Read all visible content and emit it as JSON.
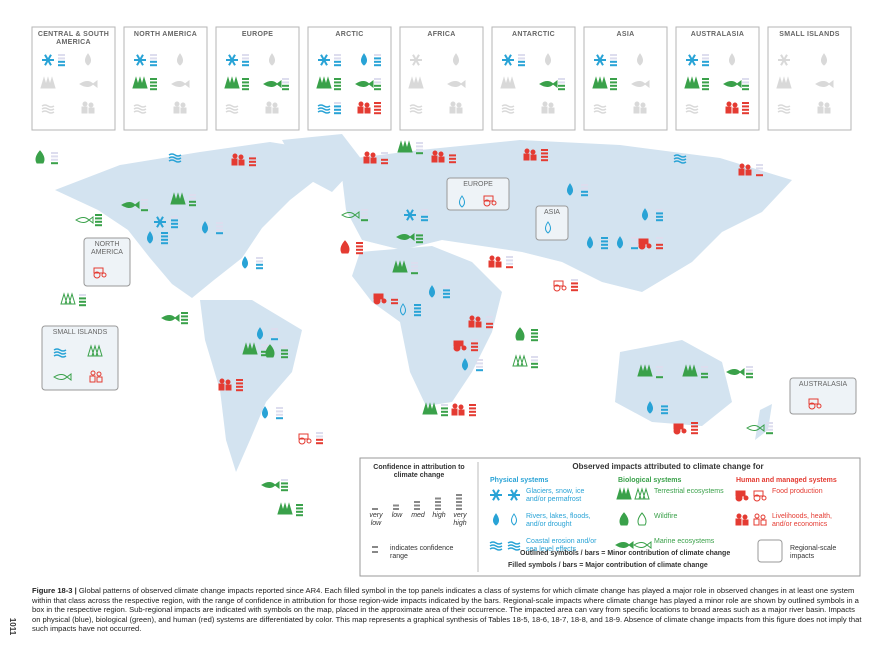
{
  "panels": [
    "CENTRAL & SOUTH AMERICA",
    "NORTH AMERICA",
    "EUROPE",
    "ARCTIC",
    "AFRICA",
    "ANTARCTIC",
    "ASIA",
    "AUSTRALASIA",
    "SMALL ISLANDS"
  ],
  "map_labels": [
    "EUROPE",
    "ASIA",
    "NORTH AMERICA",
    "SMALL ISLANDS",
    "AUSTRALASIA"
  ],
  "legend": {
    "confidence_title": "Confidence in attribution to climate change",
    "confidence_levels": [
      "very low",
      "low",
      "med",
      "high",
      "very high"
    ],
    "range_note": "indicates confidence range",
    "impacts_title": "Observed impacts attributed to climate change for",
    "physical": {
      "title": "Physical systems",
      "items": [
        "Glaciers, snow, ice and/or permafrost",
        "Rivers, lakes, floods, and/or drought",
        "Coastal erosion and/or sea level effects"
      ]
    },
    "biological": {
      "title": "Biological systems",
      "items": [
        "Terrestrial ecosystems",
        "Wildfire",
        "Marine ecosystems"
      ]
    },
    "human": {
      "title": "Human and managed systems",
      "items": [
        "Food production",
        "Livelihoods, health, and/or economics"
      ]
    },
    "outlined_note": "Outlined symbols / bars = Minor contribution of climate change",
    "filled_note": "Filled symbols / bars = Major contribution of climate change",
    "regional": "Regional-scale impacts"
  },
  "caption": {
    "label": "Figure 18-3 |",
    "text": "Global patterns of observed climate change impacts reported since AR4. Each filled symbol in the top panels indicates a class of systems for which climate change has played a major role in observed changes in at least one system within that class across the respective region, with the range of confidence in attribution for those region-wide impacts indicated by the bars. Regional-scale impacts where climate change has played a minor role are shown by outlined symbols in a box in the respective region. Sub-regional impacts are indicated with symbols on the map, placed in the approximate area of their occurrence. The impacted area can vary from specific locations to broad areas such as a major river basin. Impacts on physical (blue), biological (green), and human (red) systems are differentiated by color. This map represents a graphical synthesis of Tables 18-5, 18-6, 18-7, 18-8, and 18-9. Absence of climate change impacts from this figure does not imply that such impacts have not occurred."
  },
  "page_number": "1011"
}
